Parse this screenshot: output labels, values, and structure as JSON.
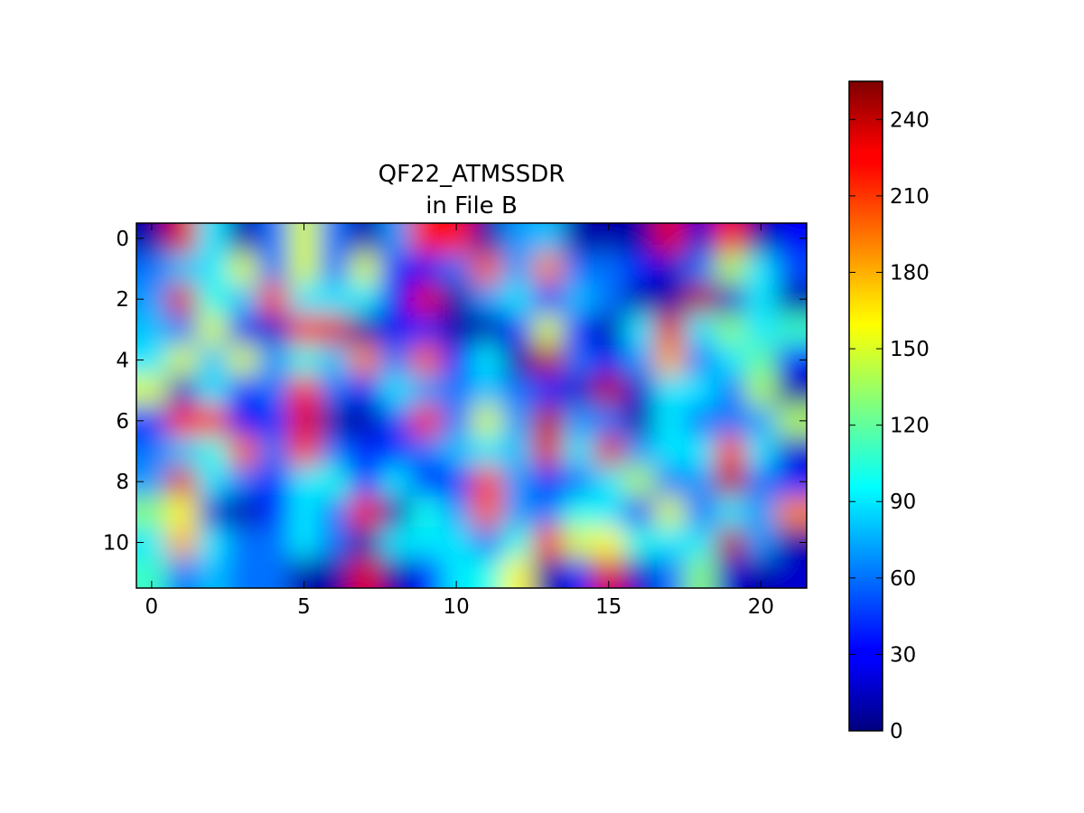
{
  "chart_data": {
    "type": "heatmap",
    "title": "QF22_ATMSSDR\nin File B",
    "xlabel": "",
    "ylabel": "",
    "colormap": "jet",
    "interpolation": "bilinear",
    "xlim": [
      -0.5,
      21.5
    ],
    "ylim": [
      11.5,
      -0.5
    ],
    "x_ticks": [
      0,
      5,
      10,
      15,
      20
    ],
    "y_ticks": [
      0,
      2,
      4,
      6,
      8,
      10
    ],
    "colorbar": {
      "min": 0,
      "max": 255,
      "ticks": [
        0,
        30,
        60,
        90,
        120,
        150,
        180,
        210,
        240
      ]
    },
    "grid": false,
    "rows": 12,
    "cols": 22,
    "values": [
      [
        10,
        230,
        90,
        10,
        60,
        150,
        60,
        10,
        70,
        220,
        220,
        10,
        70,
        80,
        10,
        10,
        10,
        230,
        20,
        220,
        10,
        30
      ],
      [
        60,
        80,
        90,
        150,
        60,
        150,
        60,
        150,
        40,
        30,
        60,
        200,
        70,
        190,
        60,
        60,
        40,
        20,
        60,
        140,
        90,
        50
      ],
      [
        70,
        230,
        100,
        80,
        210,
        90,
        90,
        90,
        30,
        230,
        10,
        70,
        90,
        40,
        80,
        60,
        10,
        10,
        240,
        20,
        90,
        10
      ],
      [
        80,
        60,
        150,
        30,
        20,
        220,
        230,
        10,
        30,
        40,
        10,
        10,
        40,
        150,
        40,
        10,
        90,
        230,
        90,
        130,
        90,
        110
      ],
      [
        90,
        150,
        80,
        150,
        70,
        100,
        80,
        190,
        60,
        200,
        40,
        90,
        10,
        240,
        60,
        30,
        70,
        180,
        60,
        90,
        120,
        40
      ],
      [
        150,
        20,
        90,
        40,
        60,
        220,
        60,
        30,
        90,
        70,
        60,
        80,
        60,
        40,
        20,
        240,
        20,
        90,
        90,
        60,
        140,
        10
      ],
      [
        40,
        220,
        220,
        30,
        40,
        230,
        10,
        10,
        50,
        220,
        60,
        150,
        70,
        240,
        70,
        60,
        10,
        90,
        60,
        60,
        70,
        140
      ],
      [
        60,
        80,
        100,
        200,
        60,
        210,
        60,
        40,
        40,
        60,
        80,
        90,
        80,
        230,
        90,
        230,
        70,
        90,
        90,
        210,
        90,
        20
      ],
      [
        70,
        230,
        90,
        60,
        40,
        90,
        100,
        40,
        90,
        40,
        40,
        210,
        70,
        40,
        60,
        90,
        140,
        60,
        70,
        240,
        60,
        40
      ],
      [
        130,
        160,
        20,
        10,
        40,
        90,
        60,
        220,
        10,
        100,
        70,
        200,
        70,
        60,
        100,
        90,
        40,
        150,
        60,
        90,
        70,
        190
      ],
      [
        90,
        180,
        90,
        60,
        60,
        90,
        60,
        10,
        90,
        90,
        90,
        60,
        100,
        210,
        150,
        160,
        100,
        90,
        90,
        240,
        70,
        10
      ],
      [
        110,
        60,
        80,
        60,
        60,
        10,
        10,
        230,
        10,
        40,
        90,
        100,
        160,
        10,
        40,
        230,
        20,
        60,
        130,
        20,
        10,
        20
      ]
    ]
  }
}
